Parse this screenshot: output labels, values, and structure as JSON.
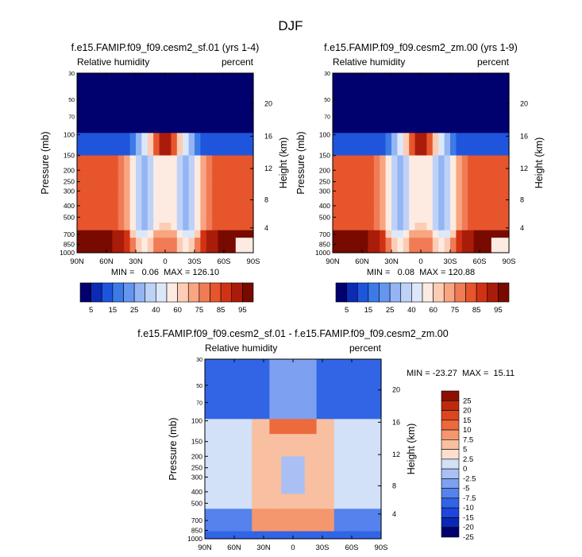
{
  "page": {
    "season": "DJF"
  },
  "colors": {
    "full": [
      "#00006e",
      "#0c2ab4",
      "#1f55dc",
      "#3c7ae8",
      "#6496f0",
      "#94b4f4",
      "#bed2f8",
      "#dce8fa",
      "#fdebe1",
      "#fccdb4",
      "#f8a582",
      "#f07b55",
      "#e6552c",
      "#d23214",
      "#aa1c0a",
      "#780a00"
    ],
    "diff": [
      "#00006e",
      "#0a28b4",
      "#1e46dc",
      "#3264e6",
      "#5582ec",
      "#7ea0f0",
      "#aac0f4",
      "#d2e0f8",
      "#fbe0d0",
      "#f8c0a0",
      "#f4966e",
      "#ec6a3c",
      "#dc461e",
      "#be2a0e",
      "#8c1000"
    ]
  },
  "panels": [
    {
      "title": "f.e15.FAMIP.f09_f09.cesm2_sf.01 (yrs 1-4)",
      "left_label": "Relative humidity",
      "right_label": "percent",
      "stats": "MIN =   0.06  MAX = 126.10"
    },
    {
      "title": "f.e15.FAMIP.f09_f09.cesm2_zm.00 (yrs 1-9)",
      "left_label": "Relative humidity",
      "right_label": "percent",
      "stats": "MIN =   0.08  MAX = 120.88"
    },
    {
      "title": "f.e15.FAMIP.f09_f09.cesm2_sf.01 - f.e15.FAMIP.f09_f09.cesm2_zm.00",
      "left_label": "Relative humidity",
      "right_label": "percent",
      "stats": "MIN = -23.27  MAX =  15.11"
    }
  ],
  "chart_data": [
    {
      "type": "heatmap",
      "title": "f.e15.FAMIP.f09_f09.cesm2_sf.01 (yrs 1-4)",
      "xlabel": "",
      "ylabel": "Pressure (mb)",
      "ylabel_right": "Height (km)",
      "x_ticks": [
        "90N",
        "60N",
        "30N",
        "0",
        "30S",
        "60S",
        "90S"
      ],
      "x_values": [
        90,
        60,
        30,
        0,
        -30,
        -60,
        -90
      ],
      "y_ticks": [
        "30",
        "50",
        "70",
        "100",
        "150",
        "200",
        "250",
        "300",
        "400",
        "500",
        "700",
        "850",
        "1000"
      ],
      "y_values": [
        30,
        50,
        70,
        100,
        150,
        200,
        250,
        300,
        400,
        500,
        700,
        850,
        1000
      ],
      "y_right_ticks": [
        "20",
        "16",
        "12",
        "8",
        "4"
      ],
      "y_right_values": [
        20,
        16,
        12,
        8,
        4
      ],
      "ylim": [
        30,
        1000
      ],
      "xlim": [
        90,
        -90
      ],
      "levels": [
        5,
        10,
        15,
        20,
        25,
        30,
        40,
        50,
        60,
        70,
        75,
        80,
        85,
        90,
        95
      ],
      "colorbar_labels": [
        "5",
        "15",
        "25",
        "40",
        "60",
        "75",
        "85",
        "95"
      ],
      "min": 0.06,
      "max": 126.1,
      "units": "percent"
    },
    {
      "type": "heatmap",
      "title": "f.e15.FAMIP.f09_f09.cesm2_zm.00 (yrs 1-9)",
      "xlabel": "",
      "ylabel": "Pressure (mb)",
      "ylabel_right": "Height (km)",
      "x_ticks": [
        "90N",
        "60N",
        "30N",
        "0",
        "30S",
        "60S",
        "90S"
      ],
      "x_values": [
        90,
        60,
        30,
        0,
        -30,
        -60,
        -90
      ],
      "y_ticks": [
        "30",
        "50",
        "70",
        "100",
        "150",
        "200",
        "250",
        "300",
        "400",
        "500",
        "700",
        "850",
        "1000"
      ],
      "y_values": [
        30,
        50,
        70,
        100,
        150,
        200,
        250,
        300,
        400,
        500,
        700,
        850,
        1000
      ],
      "y_right_ticks": [
        "20",
        "16",
        "12",
        "8",
        "4"
      ],
      "y_right_values": [
        20,
        16,
        12,
        8,
        4
      ],
      "ylim": [
        30,
        1000
      ],
      "xlim": [
        90,
        -90
      ],
      "levels": [
        5,
        10,
        15,
        20,
        25,
        30,
        40,
        50,
        60,
        70,
        75,
        80,
        85,
        90,
        95
      ],
      "colorbar_labels": [
        "5",
        "15",
        "25",
        "40",
        "60",
        "75",
        "85",
        "95"
      ],
      "min": 0.08,
      "max": 120.88,
      "units": "percent"
    },
    {
      "type": "heatmap",
      "title": "f.e15.FAMIP.f09_f09.cesm2_sf.01 - f.e15.FAMIP.f09_f09.cesm2_zm.00",
      "xlabel": "",
      "ylabel": "Pressure (mb)",
      "ylabel_right": "Height (km)",
      "x_ticks": [
        "90N",
        "60N",
        "30N",
        "0",
        "30S",
        "60S",
        "90S"
      ],
      "x_values": [
        90,
        60,
        30,
        0,
        -30,
        -60,
        -90
      ],
      "y_ticks": [
        "30",
        "50",
        "70",
        "100",
        "150",
        "200",
        "250",
        "300",
        "400",
        "500",
        "700",
        "850",
        "1000"
      ],
      "y_values": [
        30,
        50,
        70,
        100,
        150,
        200,
        250,
        300,
        400,
        500,
        700,
        850,
        1000
      ],
      "y_right_ticks": [
        "20",
        "16",
        "12",
        "8",
        "4"
      ],
      "y_right_values": [
        20,
        16,
        12,
        8,
        4
      ],
      "ylim": [
        30,
        1000
      ],
      "xlim": [
        90,
        -90
      ],
      "levels": [
        -25,
        -20,
        -15,
        -10,
        -7.5,
        -5,
        -2.5,
        0,
        2.5,
        5,
        7.5,
        10,
        15,
        20,
        25
      ],
      "colorbar_labels": [
        "25",
        "20",
        "15",
        "10",
        "7.5",
        "5",
        "2.5",
        "0",
        "-2.5",
        "-5",
        "-7.5",
        "-10",
        "-15",
        "-20",
        "-25"
      ],
      "min": -23.27,
      "max": 15.11,
      "units": "percent"
    }
  ]
}
